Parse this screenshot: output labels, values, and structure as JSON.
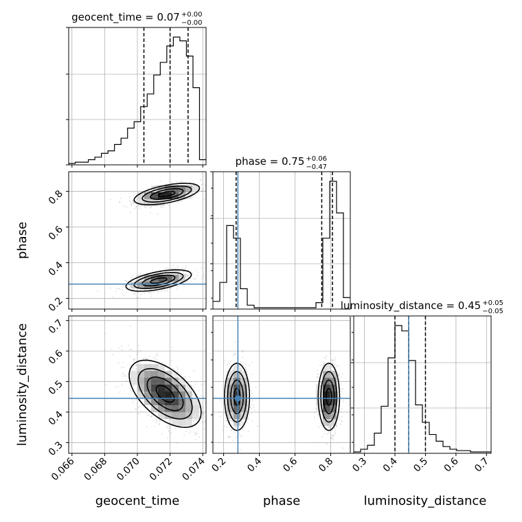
{
  "chart_data": {
    "type": "corner",
    "parameters": [
      "geocent_time",
      "phase",
      "luminosity_distance"
    ],
    "axis_labels": [
      "geocent_time",
      "phase",
      "luminosity_distance"
    ],
    "truth": {
      "geocent_time": null,
      "phase": 0.28,
      "luminosity_distance": 0.445
    },
    "truth_color": "#4682b4",
    "grid": true,
    "titles": [
      {
        "param": "geocent_time",
        "prefix": "geocent_time = ",
        "value": "0.07",
        "upper": "+0.00",
        "lower": "−0.00"
      },
      {
        "param": "phase",
        "prefix": "phase = ",
        "value": "0.75",
        "upper": "+0.06",
        "lower": "−0.47"
      },
      {
        "param": "luminosity_distance",
        "prefix": "luminosity_distance = ",
        "value": "0.45",
        "upper": "+0.05",
        "lower": "−0.05"
      }
    ],
    "ranges": {
      "geocent_time": [
        0.0658,
        0.0742
      ],
      "phase": [
        0.14,
        0.91
      ],
      "luminosity_distance": [
        0.265,
        0.715
      ]
    },
    "ticks": {
      "geocent_time": [
        "0.066",
        "0.068",
        "0.070",
        "0.072",
        "0.074"
      ],
      "phase": [
        "0.2",
        "0.4",
        "0.6",
        "0.8"
      ],
      "luminosity_distance": [
        "0.3",
        "0.4",
        "0.5",
        "0.6",
        "0.7"
      ]
    },
    "quantiles": {
      "geocent_time": [
        0.0704,
        0.072,
        0.0731
      ],
      "phase": [
        0.27,
        0.75,
        0.81
      ],
      "luminosity_distance": [
        0.4,
        0.445,
        0.5
      ]
    },
    "histograms": {
      "geocent_time": {
        "edges_start": 0.0658,
        "bin_width": 0.0004,
        "counts": [
          0,
          0.01,
          0.01,
          0.03,
          0.05,
          0.08,
          0.1,
          0.15,
          0.2,
          0.28,
          0.33,
          0.45,
          0.55,
          0.7,
          0.8,
          0.93,
          1.0,
          0.97,
          0.85,
          0.6,
          0.03
        ]
      },
      "phase": {
        "edges_start": 0.14,
        "bin_width": 0.0385,
        "counts": [
          0.05,
          0.2,
          0.65,
          0.55,
          0.15,
          0.02,
          0,
          0,
          0,
          0,
          0,
          0,
          0,
          0,
          0,
          0.04,
          0.55,
          1.0,
          0.75,
          0.08
        ]
      },
      "luminosity_distance": {
        "edges_start": 0.265,
        "bin_width": 0.0225,
        "counts": [
          0,
          0.02,
          0.05,
          0.14,
          0.34,
          0.7,
          0.94,
          0.9,
          0.68,
          0.35,
          0.22,
          0.13,
          0.08,
          0.04,
          0.02,
          0.01,
          0.01,
          0,
          0,
          0
        ]
      }
    },
    "blobs": {
      "phase_vs_geocent_time": [
        {
          "cx": 0.0718,
          "cy": 0.785,
          "sx": 0.001,
          "sy": 0.03,
          "rho": 0.55,
          "w": 0.55
        },
        {
          "cx": 0.0713,
          "cy": 0.3,
          "sx": 0.001,
          "sy": 0.03,
          "rho": 0.55,
          "w": 0.45
        }
      ],
      "luminosity_distance_vs_geocent_time": [
        {
          "cx": 0.0717,
          "cy": 0.46,
          "sx": 0.0011,
          "sy": 0.055,
          "rho": -0.55,
          "w": 1.0
        }
      ],
      "luminosity_distance_vs_phase": [
        {
          "cx": 0.275,
          "cy": 0.45,
          "sx": 0.035,
          "sy": 0.055,
          "rho": 0.0,
          "w": 0.45
        },
        {
          "cx": 0.79,
          "cy": 0.45,
          "sx": 0.03,
          "sy": 0.055,
          "rho": 0.0,
          "w": 0.55
        }
      ]
    }
  }
}
